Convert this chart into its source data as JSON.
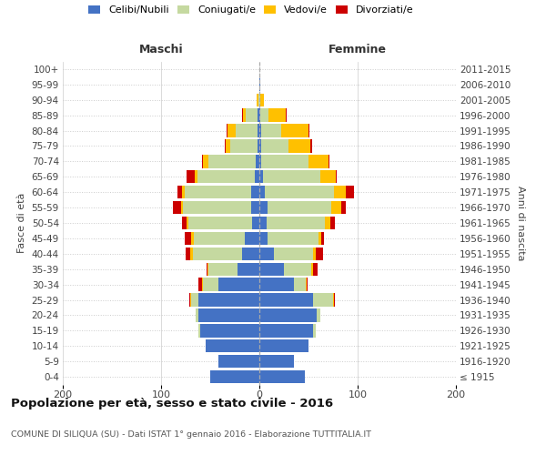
{
  "age_groups": [
    "100+",
    "95-99",
    "90-94",
    "85-89",
    "80-84",
    "75-79",
    "70-74",
    "65-69",
    "60-64",
    "55-59",
    "50-54",
    "45-49",
    "40-44",
    "35-39",
    "30-34",
    "25-29",
    "20-24",
    "15-19",
    "10-14",
    "5-9",
    "0-4"
  ],
  "birth_years": [
    "≤ 1915",
    "1916-1920",
    "1921-1925",
    "1926-1930",
    "1931-1935",
    "1936-1940",
    "1941-1945",
    "1946-1950",
    "1951-1955",
    "1956-1960",
    "1961-1965",
    "1966-1970",
    "1971-1975",
    "1976-1980",
    "1981-1985",
    "1986-1990",
    "1991-1995",
    "1996-2000",
    "2001-2005",
    "2006-2010",
    "2011-2015"
  ],
  "males": {
    "celibi": [
      0,
      0,
      0,
      2,
      2,
      2,
      4,
      5,
      8,
      8,
      7,
      15,
      18,
      22,
      42,
      62,
      62,
      60,
      55,
      42,
      50
    ],
    "coniugati": [
      0,
      0,
      1,
      12,
      22,
      28,
      48,
      58,
      68,
      70,
      65,
      52,
      50,
      30,
      15,
      7,
      3,
      2,
      0,
      0,
      0
    ],
    "vedovi": [
      0,
      0,
      2,
      3,
      8,
      4,
      5,
      3,
      3,
      2,
      2,
      2,
      2,
      1,
      1,
      1,
      0,
      0,
      0,
      0,
      0
    ],
    "divorziati": [
      0,
      0,
      0,
      1,
      1,
      1,
      1,
      8,
      4,
      8,
      5,
      7,
      5,
      1,
      4,
      1,
      0,
      0,
      0,
      0,
      0
    ]
  },
  "females": {
    "nubili": [
      0,
      1,
      0,
      1,
      2,
      2,
      2,
      4,
      6,
      8,
      7,
      8,
      15,
      25,
      35,
      55,
      58,
      55,
      50,
      35,
      46
    ],
    "coniugate": [
      0,
      0,
      1,
      8,
      20,
      28,
      48,
      58,
      70,
      65,
      60,
      52,
      40,
      28,
      12,
      20,
      4,
      2,
      0,
      0,
      0
    ],
    "vedove": [
      0,
      0,
      4,
      18,
      28,
      22,
      20,
      16,
      12,
      10,
      5,
      3,
      2,
      2,
      1,
      1,
      0,
      0,
      0,
      0,
      0
    ],
    "divorziate": [
      0,
      0,
      0,
      1,
      1,
      2,
      1,
      1,
      8,
      5,
      5,
      3,
      8,
      4,
      1,
      1,
      0,
      0,
      0,
      0,
      0
    ]
  },
  "colors": {
    "celibi": "#4472C4",
    "coniugati": "#C5D9A0",
    "vedovi": "#FFC000",
    "divorziati": "#CC0000"
  },
  "xlim": 200,
  "title": "Popolazione per età, sesso e stato civile - 2016",
  "subtitle": "COMUNE DI SILIQUA (SU) - Dati ISTAT 1° gennaio 2016 - Elaborazione TUTTITALIA.IT",
  "ylabel_left": "Fasce di età",
  "ylabel_right": "Anni di nascita",
  "xlabel_left": "Maschi",
  "xlabel_right": "Femmine",
  "bg_color": "#ffffff",
  "grid_color": "#cccccc",
  "legend_labels": [
    "Celibi/Nubili",
    "Coniugati/e",
    "Vedovi/e",
    "Divorziati/e"
  ]
}
